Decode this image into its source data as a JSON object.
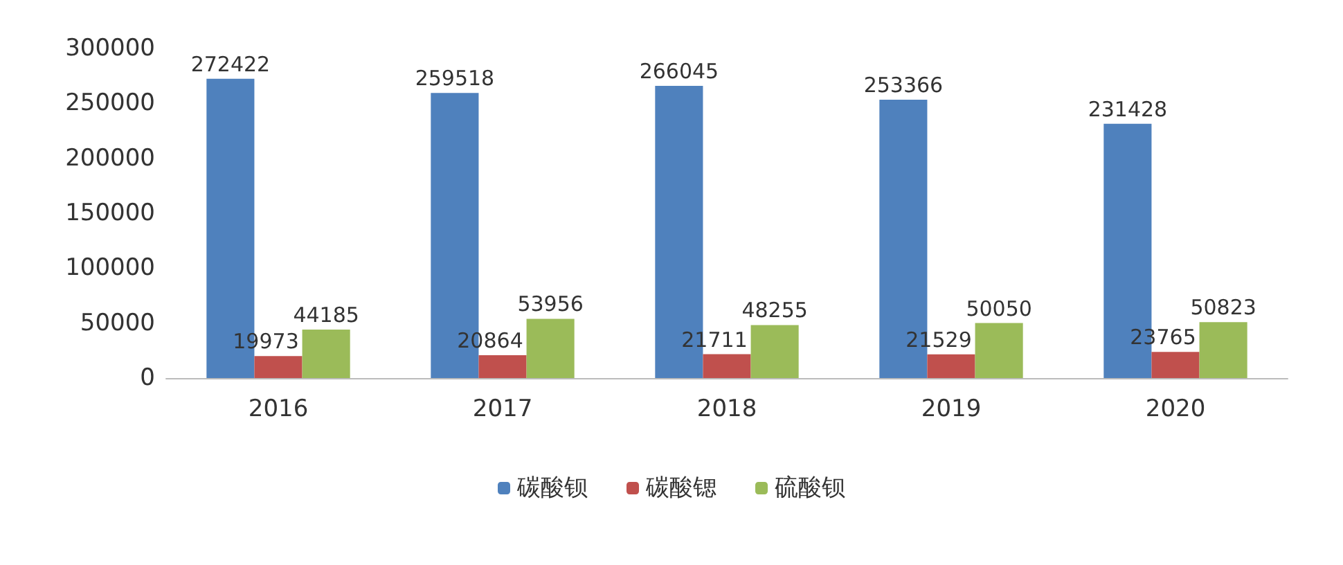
{
  "chart_data": {
    "type": "bar",
    "categories": [
      "2016",
      "2017",
      "2018",
      "2019",
      "2020"
    ],
    "series": [
      {
        "name": "碳酸钡",
        "color": "#4f81bd",
        "values": [
          272422,
          259518,
          266045,
          253366,
          231428
        ]
      },
      {
        "name": "碳酸锶",
        "color": "#c0504d",
        "values": [
          19973,
          20864,
          21711,
          21529,
          23765
        ]
      },
      {
        "name": "硫酸钡",
        "color": "#9bbb59",
        "values": [
          44185,
          53956,
          48255,
          50050,
          50823
        ]
      }
    ],
    "ylim": [
      0,
      300000
    ],
    "yticks": [
      0,
      50000,
      100000,
      150000,
      200000,
      250000,
      300000
    ],
    "grid": false,
    "legend": "bottom",
    "data_labels": true
  }
}
